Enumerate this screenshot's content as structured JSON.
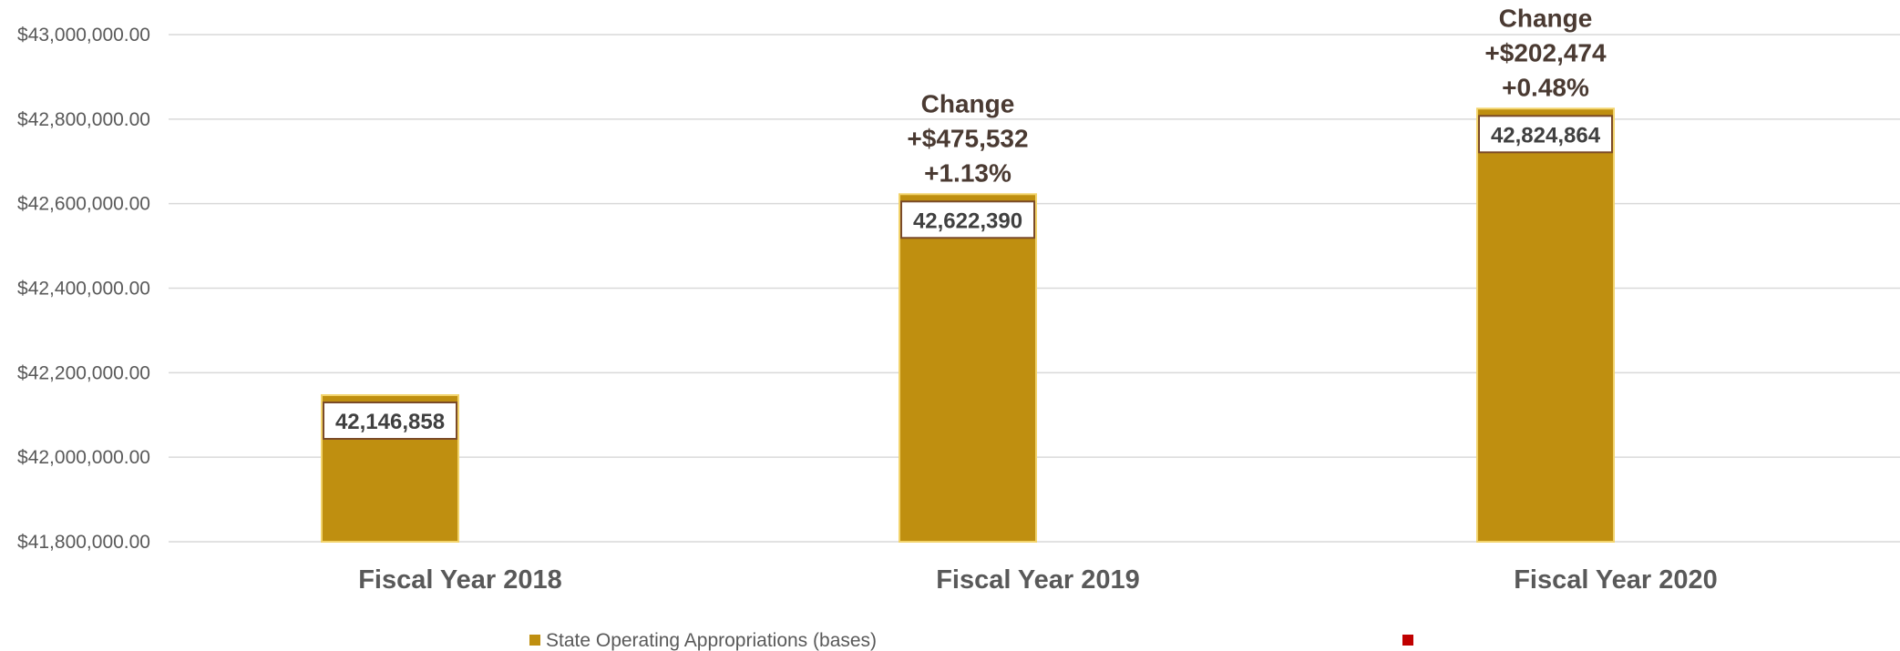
{
  "chart_data": {
    "type": "bar",
    "categories": [
      "Fiscal Year 2018",
      "Fiscal Year 2019",
      "Fiscal Year 2020"
    ],
    "series": [
      {
        "name": "State Operating Appropriations (bases)",
        "values": [
          42146858,
          42622390,
          42824864
        ]
      }
    ],
    "data_labels": [
      "42,146,858",
      "42,622,390",
      "42,824,864"
    ],
    "annotations": [
      null,
      {
        "lines": [
          "Change",
          "+$475,532",
          "+1.13%"
        ]
      },
      {
        "lines": [
          "Change",
          "+$202,474",
          "+0.48%"
        ]
      }
    ],
    "ylim": [
      41800000,
      43000000
    ],
    "yticks": [
      41800000,
      42000000,
      42200000,
      42400000,
      42600000,
      42800000,
      43000000
    ],
    "ytick_labels": [
      "$41,800,000.00",
      "$42,000,000.00",
      "$42,200,000.00",
      "$42,400,000.00",
      "$42,600,000.00",
      "$42,800,000.00",
      "$43,000,000.00"
    ],
    "grid": true,
    "legend": {
      "position": "bottom",
      "entries": [
        {
          "label": "State Operating Appropriations (bases)",
          "color": "#bf8f10"
        },
        {
          "label": "",
          "color": "#c00000"
        }
      ]
    },
    "colors": {
      "bar": "#bf8f10",
      "bar_edge": "#f2d36b",
      "grid": "#d9d9d9",
      "label_box_border": "#7a4a28"
    }
  }
}
